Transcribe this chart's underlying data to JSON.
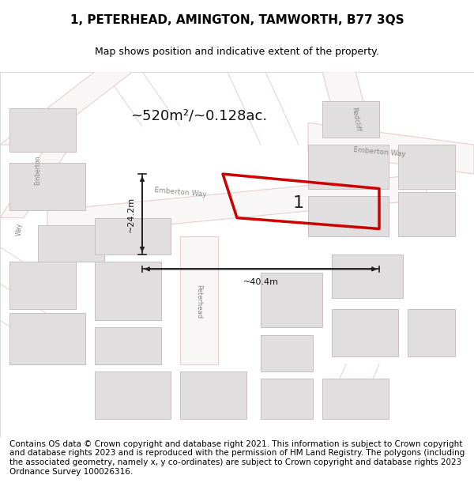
{
  "title": "1, PETERHEAD, AMINGTON, TAMWORTH, B77 3QS",
  "subtitle": "Map shows position and indicative extent of the property.",
  "footer": "Contains OS data © Crown copyright and database right 2021. This information is subject to Crown copyright and database rights 2023 and is reproduced with the permission of HM Land Registry. The polygons (including the associated geometry, namely x, y co-ordinates) are subject to Crown copyright and database rights 2023 Ordnance Survey 100026316.",
  "area_text": "~520m²/~0.128ac.",
  "dim_width": "~40.4m",
  "dim_height": "~24.2m",
  "property_label": "1",
  "bg_color": "#f5f5f5",
  "map_bg": "#f0eeee",
  "road_color": "#e8d0d0",
  "building_color": "#e0dede",
  "highlight_color": "#cc0000",
  "dim_color": "#222222",
  "title_fontsize": 11,
  "subtitle_fontsize": 9,
  "footer_fontsize": 7.5
}
